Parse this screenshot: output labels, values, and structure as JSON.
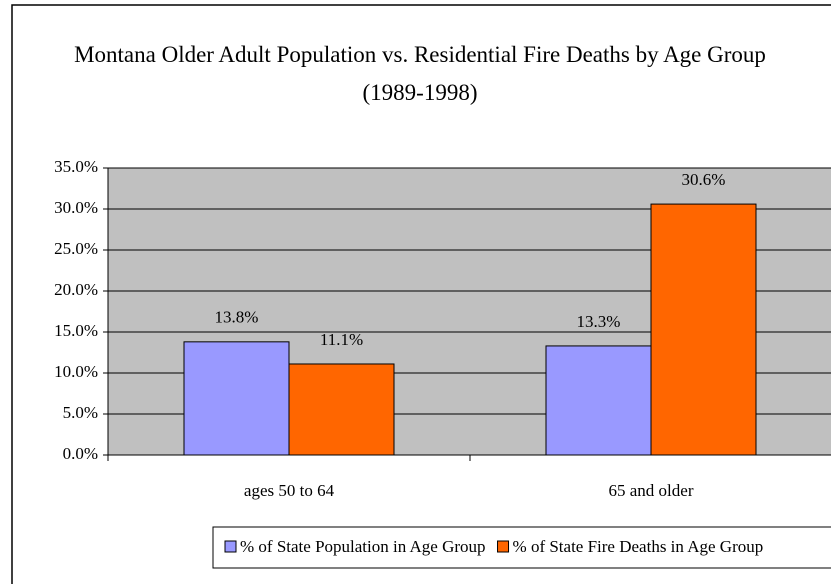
{
  "chart_data": {
    "type": "bar",
    "title": "Montana Older Adult Population vs. Residential Fire Deaths by Age Group (1989-1998)",
    "categories": [
      "ages 50 to 64",
      "65 and older"
    ],
    "series": [
      {
        "name": "% of State Population in Age Group",
        "color": "#9999ff",
        "values": [
          13.8,
          13.3
        ],
        "value_labels": [
          "13.8%",
          "13.3%"
        ]
      },
      {
        "name": "% of State Fire Deaths in Age Group",
        "color": "#ff6600",
        "values": [
          11.1,
          30.6
        ],
        "value_labels": [
          "11.1%",
          "30.6%"
        ]
      }
    ],
    "ylim": [
      0,
      35
    ],
    "yticks": [
      {
        "value": 0,
        "label": "0.0%"
      },
      {
        "value": 5,
        "label": "5.0%"
      },
      {
        "value": 10,
        "label": "10.0%"
      },
      {
        "value": 15,
        "label": "15.0%"
      },
      {
        "value": 20,
        "label": "20.0%"
      },
      {
        "value": 25,
        "label": "25.0%"
      },
      {
        "value": 30,
        "label": "30.0%"
      },
      {
        "value": 35,
        "label": "35.0%"
      }
    ],
    "grid": true,
    "plot_background": "#c0c0c0",
    "legend": "bottom"
  }
}
